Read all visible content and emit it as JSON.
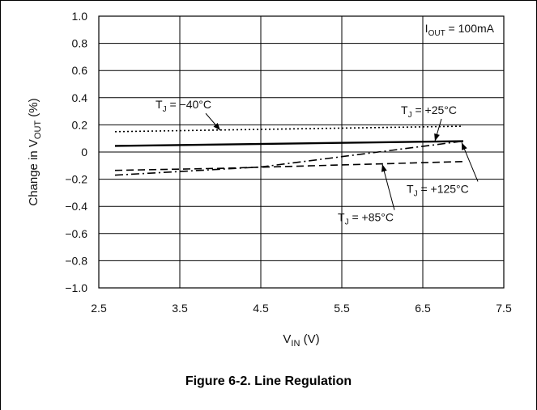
{
  "caption": "Figure 6-2. Line Regulation",
  "chart_data": {
    "type": "line",
    "title": "",
    "xlabel": {
      "main": "V",
      "sub": "IN",
      "rest": " (V)"
    },
    "ylabel": {
      "main": "Change in V",
      "sub": "OUT",
      "rest": " (%)"
    },
    "xlim": [
      2.5,
      7.5
    ],
    "ylim": [
      -1.0,
      1.0
    ],
    "x_ticks": [
      2.5,
      3.5,
      4.5,
      5.5,
      6.5,
      7.5
    ],
    "x_tick_labels": [
      "2.5",
      "3.5",
      "4.5",
      "5.5",
      "6.5",
      "7.5"
    ],
    "y_ticks": [
      1.0,
      0.8,
      0.6,
      0.4,
      0.2,
      0,
      -0.2,
      -0.4,
      -0.6,
      -0.8,
      -1.0
    ],
    "y_tick_labels": [
      "1.0",
      "0.8",
      "0.6",
      "0.4",
      "0.2",
      "0",
      "−0.2",
      "−0.4",
      "−0.6",
      "−0.8",
      "−1.0"
    ],
    "grid": true,
    "condition": {
      "main": "I",
      "sub": "OUT",
      "rest": " = 100mA"
    },
    "series": [
      {
        "name": {
          "main": "T",
          "sub": "J",
          "rest": " = −40°C"
        },
        "style": "dotted",
        "x": [
          2.7,
          7.0
        ],
        "y": [
          0.15,
          0.19
        ],
        "label_pos": [
          3.2,
          0.32
        ],
        "arrow_to": [
          4.0,
          0.16
        ]
      },
      {
        "name": {
          "main": "T",
          "sub": "J",
          "rest": " = +25°C"
        },
        "style": "solid",
        "x": [
          2.7,
          7.0
        ],
        "y": [
          0.045,
          0.08
        ],
        "label_pos": [
          6.23,
          0.28
        ],
        "arrow_to": [
          6.65,
          0.08
        ]
      },
      {
        "name": {
          "main": "T",
          "sub": "J",
          "rest": " = +85°C"
        },
        "style": "dashed",
        "x": [
          2.7,
          4.0,
          7.0
        ],
        "y": [
          -0.135,
          -0.12,
          -0.07
        ],
        "label_pos": [
          5.45,
          -0.51
        ],
        "arrow_to": [
          6.0,
          -0.09
        ]
      },
      {
        "name": {
          "main": "T",
          "sub": "J",
          "rest": " = +125°C"
        },
        "style": "dashdot",
        "x": [
          2.7,
          4.5,
          7.0
        ],
        "y": [
          -0.17,
          -0.11,
          0.08
        ],
        "label_pos": [
          6.3,
          -0.3
        ],
        "arrow_to": [
          6.98,
          0.07
        ]
      }
    ]
  }
}
